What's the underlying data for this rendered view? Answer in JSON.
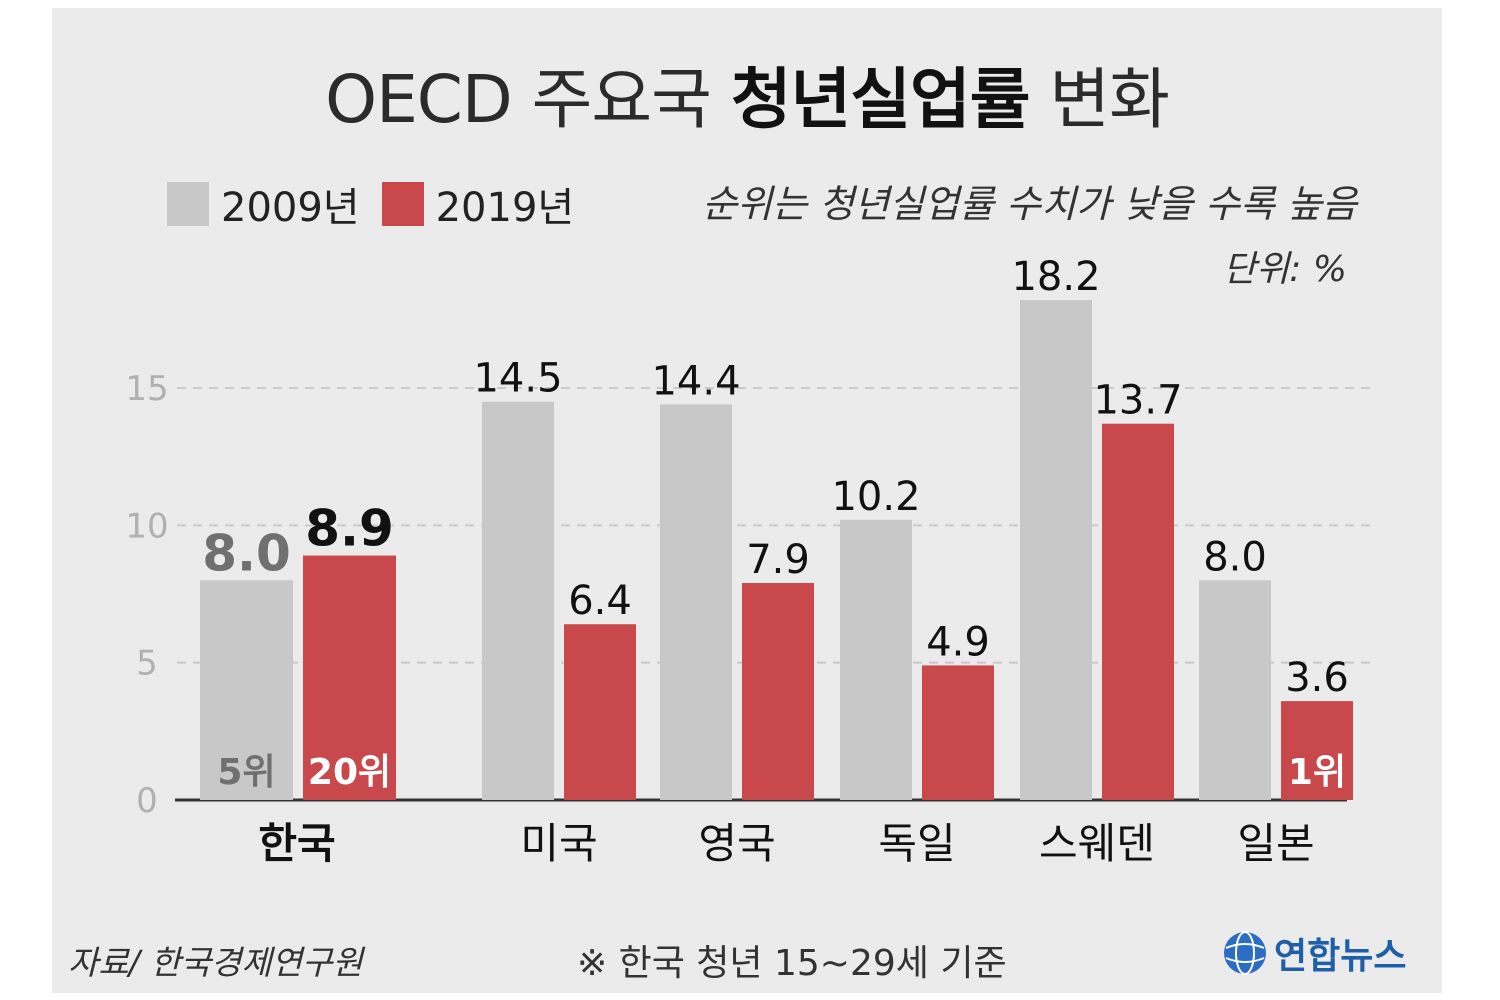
{
  "title": {
    "part1": "OECD 주요국 ",
    "strong": "청년실업률",
    "part2": " 변화"
  },
  "legend": [
    {
      "label": "2009년",
      "color": "#c8c8c8"
    },
    {
      "label": "2019년",
      "color": "#c8484b"
    }
  ],
  "note": "순위는 청년실업률 수치가 낮을 수록 높음",
  "unit": "단위: %",
  "source": "자료/ 한국경제연구원",
  "footnote": "※ 한국 청년 15~29세 기준",
  "logo": {
    "text": "연합뉴스",
    "icon": "yonhap-globe-icon"
  },
  "chart_data": {
    "type": "bar",
    "title": "OECD 주요국 청년실업률 변화",
    "categories": [
      "한국",
      "미국",
      "영국",
      "독일",
      "스웨덴",
      "일본"
    ],
    "series": [
      {
        "name": "2009년",
        "values": [
          8.0,
          14.5,
          14.4,
          10.2,
          18.2,
          8.0
        ],
        "color": "#c8c8c8",
        "ranks": [
          "5위",
          "",
          "",
          "",
          "",
          ""
        ]
      },
      {
        "name": "2019년",
        "values": [
          8.9,
          6.4,
          7.9,
          4.9,
          13.7,
          3.6
        ],
        "color": "#c8484b",
        "ranks": [
          "20위",
          "",
          "",
          "",
          "",
          "1위"
        ]
      }
    ],
    "ylim": [
      0,
      19
    ],
    "yticks": [
      0,
      5,
      10,
      15
    ],
    "grid": true,
    "legend_position": "top-left"
  }
}
